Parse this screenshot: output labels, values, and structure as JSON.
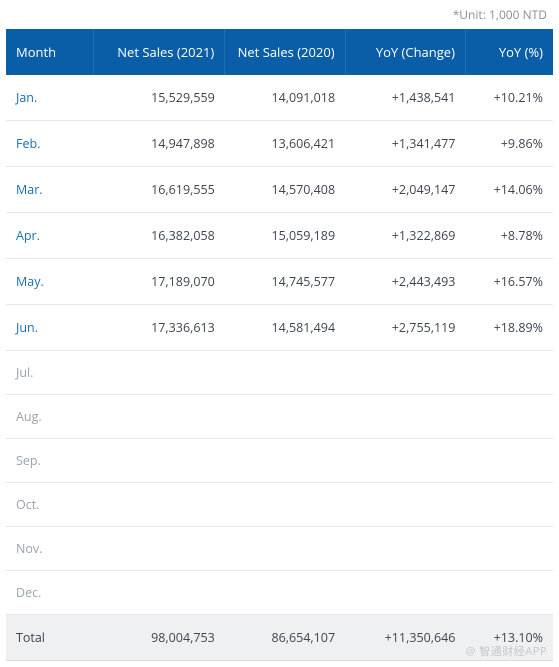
{
  "unit_note": "*Unit: 1,000 NTD",
  "table": {
    "type": "table",
    "header_bg": "#0a5ea8",
    "header_fg": "#ffffff",
    "row_border": "#e6e8eb",
    "month_color": "#1a6fb0",
    "text_color": "#3d4550",
    "total_bg": "#eef0f2",
    "columns": [
      {
        "key": "month",
        "label": "Month",
        "align": "left"
      },
      {
        "key": "s21",
        "label": "Net Sales (2021)",
        "align": "right"
      },
      {
        "key": "s20",
        "label": "Net Sales (2020)",
        "align": "right"
      },
      {
        "key": "chg",
        "label": "YoY (Change)",
        "align": "right"
      },
      {
        "key": "pct",
        "label": "YoY (%)",
        "align": "right"
      }
    ],
    "rows": [
      {
        "month": "Jan.",
        "s21": "15,529,559",
        "s20": "14,091,018",
        "chg": "+1,438,541",
        "pct": "+10.21%"
      },
      {
        "month": "Feb.",
        "s21": "14,947,898",
        "s20": "13,606,421",
        "chg": "+1,341,477",
        "pct": "+9.86%"
      },
      {
        "month": "Mar.",
        "s21": "16,619,555",
        "s20": "14,570,408",
        "chg": "+2,049,147",
        "pct": "+14.06%"
      },
      {
        "month": "Apr.",
        "s21": "16,382,058",
        "s20": "15,059,189",
        "chg": "+1,322,869",
        "pct": "+8.78%"
      },
      {
        "month": "May.",
        "s21": "17,189,070",
        "s20": "14,745,577",
        "chg": "+2,443,493",
        "pct": "+16.57%"
      },
      {
        "month": "Jun.",
        "s21": "17,336,613",
        "s20": "14,581,494",
        "chg": "+2,755,119",
        "pct": "+18.89%"
      },
      {
        "month": "Jul.",
        "empty": true
      },
      {
        "month": "Aug.",
        "empty": true
      },
      {
        "month": "Sep.",
        "empty": true
      },
      {
        "month": "Oct.",
        "empty": true
      },
      {
        "month": "Nov.",
        "empty": true
      },
      {
        "month": "Dec.",
        "empty": true
      }
    ],
    "total": {
      "month": "Total",
      "s21": "98,004,753",
      "s20": "86,654,107",
      "chg": "+11,350,646",
      "pct": "+13.10%"
    }
  },
  "watermark": "@ 智通财经APP"
}
